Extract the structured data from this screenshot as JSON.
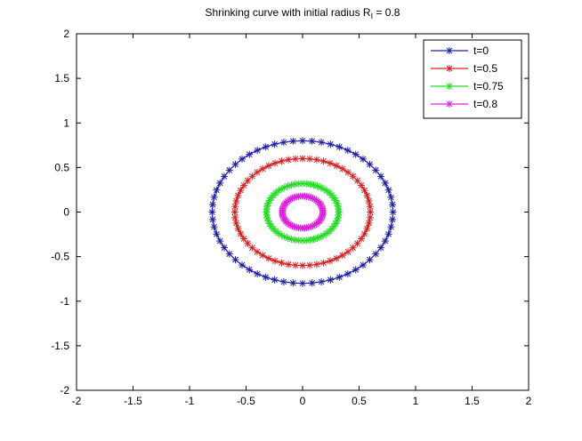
{
  "chart_data": {
    "type": "line",
    "title": {
      "prefix": "Shrinking curve with initial radius R",
      "subscript": "I",
      "suffix": " = 0.8"
    },
    "xlabel": "",
    "ylabel": "",
    "xlim": [
      -2,
      2
    ],
    "ylim": [
      -2,
      2
    ],
    "x_ticks": [
      -2,
      -1.5,
      -1,
      -0.5,
      0,
      0.5,
      1,
      1.5,
      2
    ],
    "y_ticks": [
      -2,
      -1.5,
      -1,
      -0.5,
      0,
      0.5,
      1,
      1.5,
      2
    ],
    "x_tick_labels": [
      "-2",
      "-1.5",
      "-1",
      "-0.5",
      "0",
      "0.5",
      "1",
      "1.5",
      "2"
    ],
    "y_tick_labels": [
      "-2",
      "-1.5",
      "-1",
      "-0.5",
      "0",
      "0.5",
      "1",
      "1.5",
      "2"
    ],
    "grid": false,
    "legend_position": "top-right",
    "marker": "*",
    "series": [
      {
        "name": "t=0",
        "color": "#1f1fa8",
        "shape": "circle",
        "center": [
          0,
          0
        ],
        "radius": 0.8,
        "num_points": 60
      },
      {
        "name": "t=0.5",
        "color": "#d62020",
        "shape": "circle",
        "center": [
          0,
          0
        ],
        "radius": 0.6,
        "num_points": 60
      },
      {
        "name": "t=0.75",
        "color": "#22dd22",
        "shape": "circle",
        "center": [
          0,
          0
        ],
        "radius": 0.32,
        "num_points": 60
      },
      {
        "name": "t=0.8",
        "color": "#e020e0",
        "shape": "circle",
        "center": [
          0,
          0
        ],
        "radius": 0.18,
        "num_points": 60
      }
    ]
  }
}
